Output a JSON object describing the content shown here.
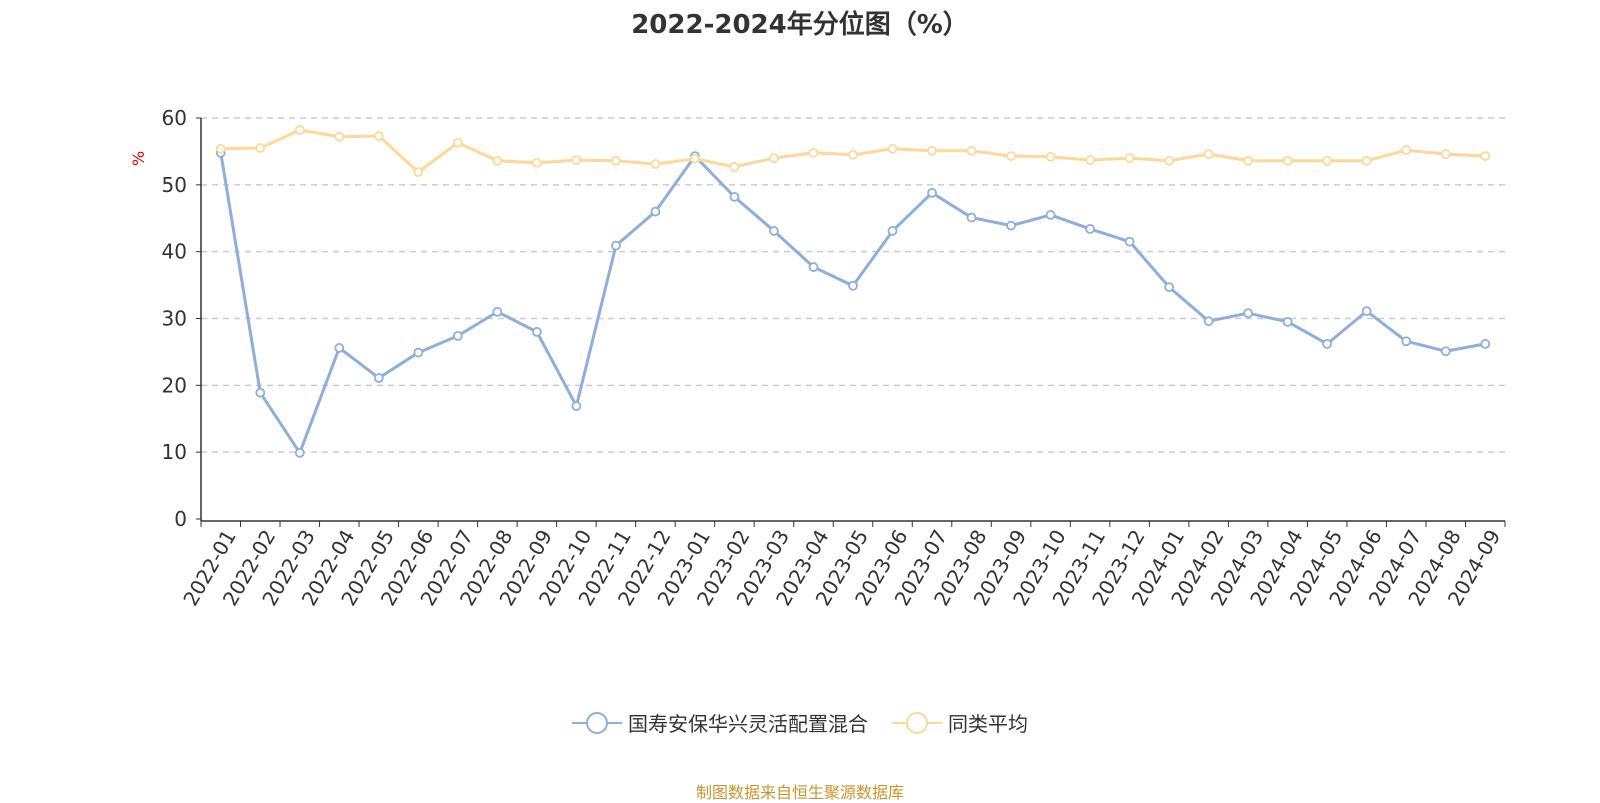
{
  "chart_data": {
    "type": "line",
    "title": "2022-2024年分位图（%）",
    "ylabel": "%",
    "ylim": [
      0,
      60
    ],
    "yticks": [
      0,
      10,
      20,
      30,
      40,
      50,
      60
    ],
    "grid": true,
    "legend_position": "bottom",
    "categories": [
      "2022-01",
      "2022-02",
      "2022-03",
      "2022-04",
      "2022-05",
      "2022-06",
      "2022-07",
      "2022-08",
      "2022-09",
      "2022-10",
      "2022-11",
      "2022-12",
      "2023-01",
      "2023-02",
      "2023-03",
      "2023-04",
      "2023-05",
      "2023-06",
      "2023-07",
      "2023-08",
      "2023-09",
      "2023-10",
      "2023-11",
      "2023-12",
      "2024-01",
      "2024-02",
      "2024-03",
      "2024-04",
      "2024-05",
      "2024-06",
      "2024-07",
      "2024-08",
      "2024-09"
    ],
    "series": [
      {
        "name": "国寿安保华兴灵活配置混合",
        "color": "#8eaedc",
        "values": [
          54.8,
          18.9,
          9.9,
          25.6,
          21.1,
          24.9,
          27.4,
          31.0,
          28.0,
          16.9,
          40.9,
          46.0,
          54.3,
          48.2,
          43.1,
          37.7,
          34.9,
          43.1,
          48.8,
          45.1,
          43.9,
          45.5,
          43.4,
          41.5,
          34.7,
          29.6,
          30.8,
          29.5,
          26.2,
          31.1,
          26.6,
          25.1,
          26.2
        ]
      },
      {
        "name": "同类平均",
        "color": "#fdd898",
        "values": [
          55.4,
          55.5,
          58.2,
          57.2,
          57.3,
          51.9,
          56.3,
          53.6,
          53.3,
          53.7,
          53.6,
          53.1,
          53.9,
          52.7,
          54.0,
          54.8,
          54.5,
          55.4,
          55.1,
          55.1,
          54.3,
          54.2,
          53.7,
          54.0,
          53.6,
          54.6,
          53.6,
          53.6,
          53.6,
          53.6,
          55.2,
          54.6,
          54.3
        ]
      }
    ]
  },
  "source": "制图数据来自恒生聚源数据库"
}
